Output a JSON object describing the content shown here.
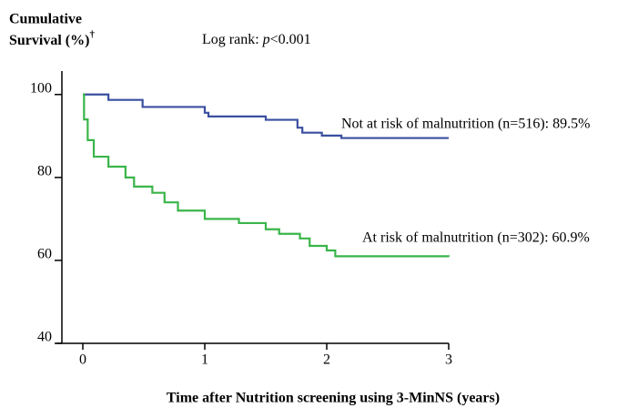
{
  "chart_data": {
    "type": "line",
    "step": true,
    "ylabel": [
      "Cumulative",
      "Survival (%)"
    ],
    "ylabel_mark": "†",
    "annotation": {
      "prefix": "Log rank: ",
      "italic": "p",
      "suffix": "<0.001"
    },
    "xlabel": "Time after Nutrition screening using 3-MinNS (years)",
    "xlim": [
      0,
      3
    ],
    "xticks": [
      0,
      1,
      2,
      3
    ],
    "ylim": [
      40,
      105
    ],
    "yticks": [
      40,
      60,
      80,
      100
    ],
    "series": [
      {
        "name": "Not at risk of malnutrition (n=516): 89.5%",
        "color": "#3a4fa0",
        "x": [
          0,
          0.21,
          0.49,
          1.0,
          1.03,
          1.5,
          1.76,
          1.8,
          1.96,
          2.12,
          3
        ],
        "values": [
          100,
          98.7,
          97,
          95.6,
          94.7,
          93.9,
          92,
          90.8,
          90.1,
          89.5,
          89.5
        ]
      },
      {
        "name": "At risk of malnutrition (n=302): 60.9%",
        "color": "#3ab54a",
        "x": [
          0,
          0.01,
          0.04,
          0.09,
          0.21,
          0.35,
          0.42,
          0.57,
          0.67,
          0.78,
          1.0,
          1.28,
          1.5,
          1.61,
          1.78,
          1.86,
          2.0,
          2.07,
          3
        ],
        "values": [
          100,
          94,
          89,
          85,
          82.6,
          80,
          77.8,
          76.3,
          74,
          72,
          70,
          69,
          67.5,
          66.4,
          65.3,
          63.5,
          62.4,
          61,
          60.9
        ]
      }
    ]
  }
}
